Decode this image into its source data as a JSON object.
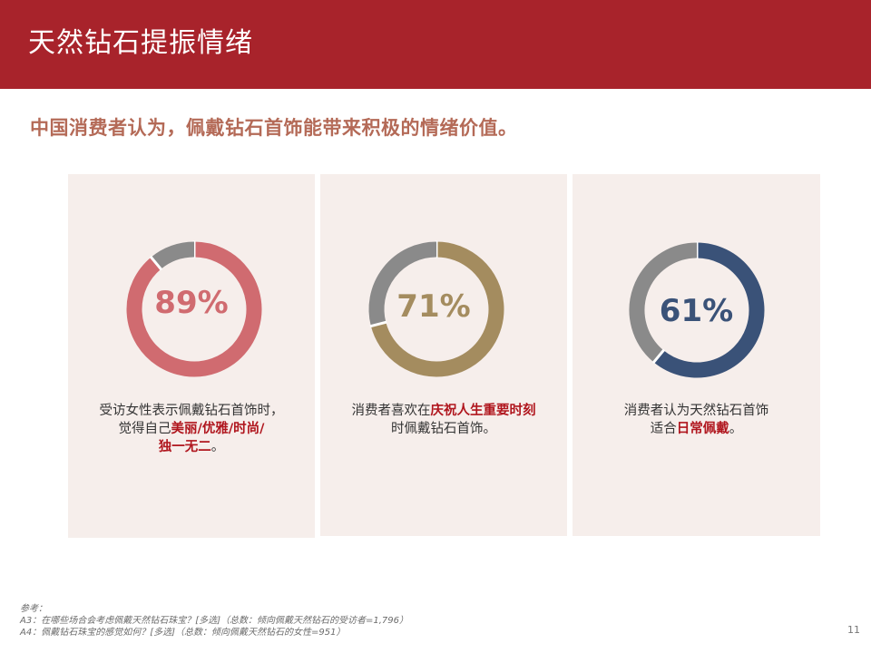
{
  "header": {
    "title": "天然钻石提振情绪"
  },
  "subtitle": "中国消费者认为，佩戴钻石首饰能带来积极的情绪价值。",
  "colors": {
    "header_bg": "#a8232b",
    "panel_bg": "#f6eeeb",
    "remainder_gray": "#8a8a8a",
    "highlight_red": "#b0161e"
  },
  "chart_data": [
    {
      "type": "donut",
      "values": [
        89,
        11
      ],
      "label": "89%",
      "color": "#d06b70",
      "remainder_color": "#8a8a8a",
      "text_before": "受访女性表示佩戴钻石首饰时，",
      "text_line2_before": "觉得自己",
      "highlight_part1": "美丽/优雅/时尚/",
      "highlight_part2": "独一无二",
      "text_after": "。"
    },
    {
      "type": "donut",
      "values": [
        71,
        29
      ],
      "label": "71%",
      "color": "#a48c5f",
      "remainder_color": "#8a8a8a",
      "text_before": "消费者喜欢在",
      "highlight": "庆祝人生重要时刻",
      "text_after": "时佩戴钻石首饰。"
    },
    {
      "type": "donut",
      "values": [
        61,
        39
      ],
      "label": "61%",
      "color": "#3a5278",
      "remainder_color": "#8a8a8a",
      "text_before": "消费者认为天然钻石首饰",
      "text_line2_before": "适合",
      "highlight": "日常佩戴",
      "text_after": "。"
    }
  ],
  "footnotes": [
    "参考：",
    "A3：在哪些场合会考虑佩戴天然钻石珠宝？[多选]（总数：倾向佩戴天然钻石的受访者=1,796）",
    "A4：佩戴钻石珠宝的感觉如何？[多选]（总数：倾向佩戴天然钻石的女性=951）"
  ],
  "page_number": "11"
}
